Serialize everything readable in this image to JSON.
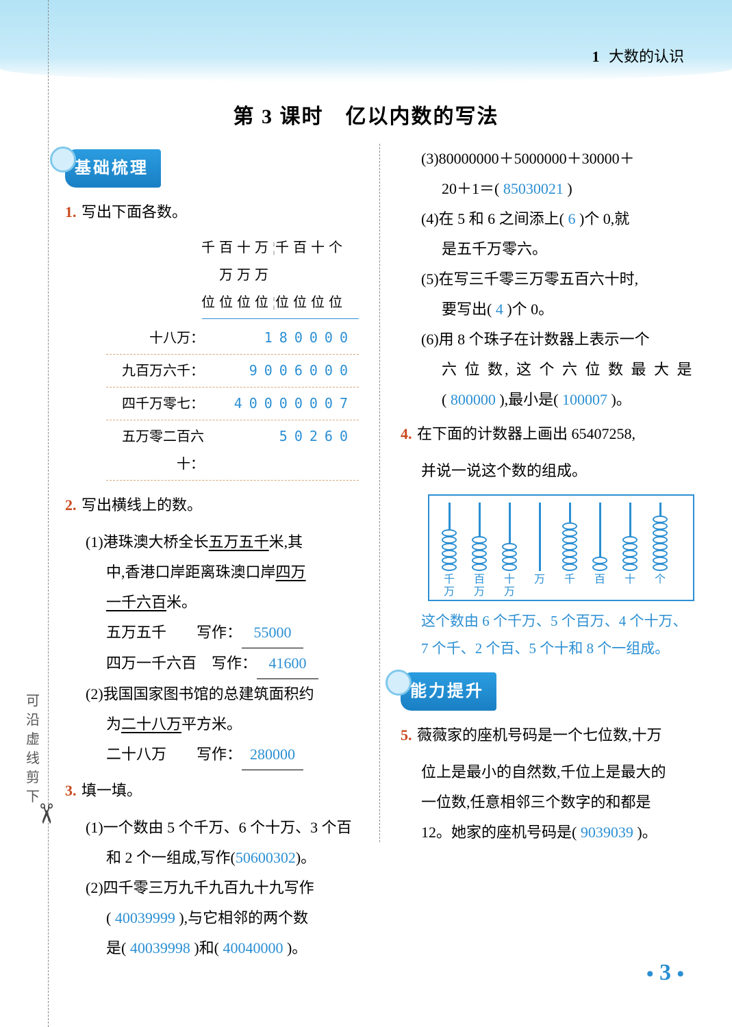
{
  "chapter": {
    "num": "1",
    "title": "大数的认识"
  },
  "page_title": "第 3 课时　亿以内数的写法",
  "cut_label": "可沿虚线剪下",
  "badges": {
    "basic": "基础梳理",
    "up": "能力提升"
  },
  "q1": {
    "title": "写出下面各数。",
    "header_top": "千百十万千百十个",
    "header_mid": "万万万",
    "header_bot": "位位位位位位位位",
    "rows": [
      {
        "label": "十八万：",
        "digits": "180000"
      },
      {
        "label": "九百万六千：",
        "digits": "9006000"
      },
      {
        "label": "四千万零七：",
        "digits": "40000007"
      },
      {
        "label": "五万零二百六十：",
        "digits": "50260"
      }
    ]
  },
  "q2": {
    "title": "写出横线上的数。",
    "p1a": "(1)港珠澳大桥全长",
    "p1b": "五万五千",
    "p1c": "米,其",
    "p1d": "中,香港口岸距离珠澳口岸",
    "p1e": "四万",
    "p1f": "一千六百",
    "p1g": "米。",
    "l1_label": "五万五千",
    "l1_w": "写作：",
    "l1_ans": "55000",
    "l2_label": "四万一千六百",
    "l2_w": "写作：",
    "l2_ans": "41600",
    "p2a": "(2)我国国家图书馆的总建筑面积约",
    "p2b": "为",
    "p2c": "二十八万",
    "p2d": "平方米。",
    "l3_label": "二十八万",
    "l3_w": "写作：",
    "l3_ans": "280000"
  },
  "q3": {
    "title": "填一填。",
    "i1a": "(1)一个数由 5 个千万、6 个十万、3 个百",
    "i1b": "和 2 个一组成,写作(",
    "i1ans": "50600302",
    "i1c": ")。",
    "i2a": "(2)四千零三万九千九百九十九写作",
    "i2b": "(",
    "i2ans": "40039999",
    "i2c": "),与它相邻的两个数",
    "i2d": "是(",
    "i2ans2": "40039998",
    "i2e": ")和(",
    "i2ans3": "40040000",
    "i2f": ")。",
    "i3a": "(3)80000000＋5000000＋30000＋",
    "i3b": "20＋1＝(",
    "i3ans": "85030021",
    "i3c": ")",
    "i4a": "(4)在 5 和 6 之间添上(",
    "i4ans": "6",
    "i4b": ")个 0,就",
    "i4c": "是五千万零六。",
    "i5a": "(5)在写三千零三万零五百六十时,",
    "i5b": "要写出(",
    "i5ans": "4",
    "i5c": ")个 0。",
    "i6a": "(6)用 8 个珠子在计数器上表示一个",
    "i6b": "六 位 数, 这 个 六 位 数 最 大 是",
    "i6c": "(",
    "i6ans1": "800000",
    "i6d": "),最小是(",
    "i6ans2": "100007",
    "i6e": ")。"
  },
  "q4": {
    "title_a": "在下面的计数器上画出 65407258,",
    "title_b": "并说一说这个数的组成。",
    "labels": [
      "千万",
      "百万",
      "十万",
      "万",
      "千",
      "百",
      "十",
      "个"
    ],
    "beads": [
      6,
      5,
      4,
      0,
      7,
      2,
      5,
      8
    ],
    "note1": "这个数由 6 个千万、5 个百万、4 个十万、",
    "note2": "7 个千、2 个百、5 个十和 8 个一组成。"
  },
  "q5": {
    "a": "薇薇家的座机号码是一个七位数,十万",
    "b": "位上是最小的自然数,千位上是最大的",
    "c": "一位数,任意相邻三个数字的和都是",
    "d": "12。她家的座机号码是(",
    "ans": "9039039",
    "e": ")。"
  },
  "page_number": "3",
  "colors": {
    "brand": "#2b8fd3",
    "accent": "#c94a1e",
    "band": "#b3e3f5"
  }
}
